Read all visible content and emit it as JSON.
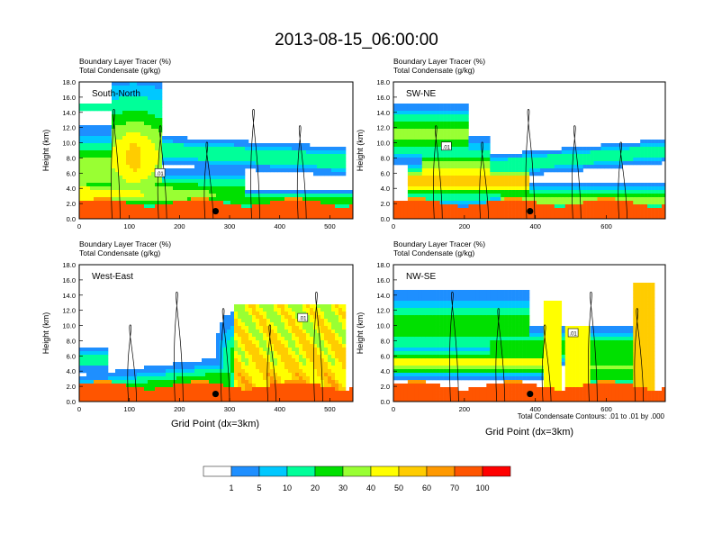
{
  "title": "2013-08-15_06:00:00",
  "panel_header": {
    "line1": "Boundary Layer Tracer   (%)",
    "line2": "Total Condensate   (g/kg)"
  },
  "ylabel": "Height (km)",
  "xlabel": "Grid Point (dx=3km)",
  "contour_note": "Total Condensate Contours: .01 to .01 by .000",
  "colors": {
    "levels": [
      "#ffffff",
      "#1e8fff",
      "#00c8ff",
      "#00ff99",
      "#00e000",
      "#99ff33",
      "#ffff00",
      "#ffcc00",
      "#ff9900",
      "#ff5500",
      "#ff0000"
    ],
    "bar_labels": [
      "1",
      "5",
      "10",
      "20",
      "30",
      "40",
      "50",
      "60",
      "70",
      "100"
    ]
  },
  "chart_data": [
    {
      "type": "heatmap",
      "name": "South-North",
      "xlim": [
        0,
        546
      ],
      "ylim": [
        0,
        18
      ],
      "xticks": [
        "0",
        "100",
        "200",
        "300",
        "400",
        "500"
      ],
      "yticks": [
        "0.0",
        "2.0",
        "4.0",
        "6.0",
        "8.0",
        "10.0",
        "12.0",
        "14.0",
        "16.0",
        "18.0"
      ],
      "contour_label": ".01",
      "contour_label_pos": [
        160,
        6.0
      ],
      "marker": [
        272,
        1.0
      ]
    },
    {
      "type": "heatmap",
      "name": "SW-NE",
      "xlim": [
        0,
        766
      ],
      "ylim": [
        0,
        18
      ],
      "xticks": [
        "0",
        "200",
        "400",
        "600"
      ],
      "yticks": [
        "0.0",
        "2.0",
        "4.0",
        "6.0",
        "8.0",
        "10.0",
        "12.0",
        "14.0",
        "16.0",
        "18.0"
      ],
      "contour_label": ".01",
      "contour_label_pos": [
        148,
        9.5
      ],
      "marker": [
        385,
        1.0
      ]
    },
    {
      "type": "heatmap",
      "name": "West-East",
      "xlim": [
        0,
        546
      ],
      "ylim": [
        0,
        18
      ],
      "xticks": [
        "0",
        "100",
        "200",
        "300",
        "400",
        "500"
      ],
      "yticks": [
        "0.0",
        "2.0",
        "4.0",
        "6.0",
        "8.0",
        "10.0",
        "12.0",
        "14.0",
        "16.0",
        "18.0"
      ],
      "contour_label": ".01",
      "contour_label_pos": [
        445,
        11.0
      ],
      "marker": [
        272,
        1.0
      ]
    },
    {
      "type": "heatmap",
      "name": "NW-SE",
      "xlim": [
        0,
        766
      ],
      "ylim": [
        0,
        18
      ],
      "xticks": [
        "0",
        "200",
        "400",
        "600"
      ],
      "yticks": [
        "0.0",
        "2.0",
        "4.0",
        "6.0",
        "8.0",
        "10.0",
        "12.0",
        "14.0",
        "16.0",
        "18.0"
      ],
      "contour_label": ".01",
      "contour_label_pos": [
        505,
        9.0
      ],
      "marker": [
        385,
        1.0
      ]
    }
  ]
}
